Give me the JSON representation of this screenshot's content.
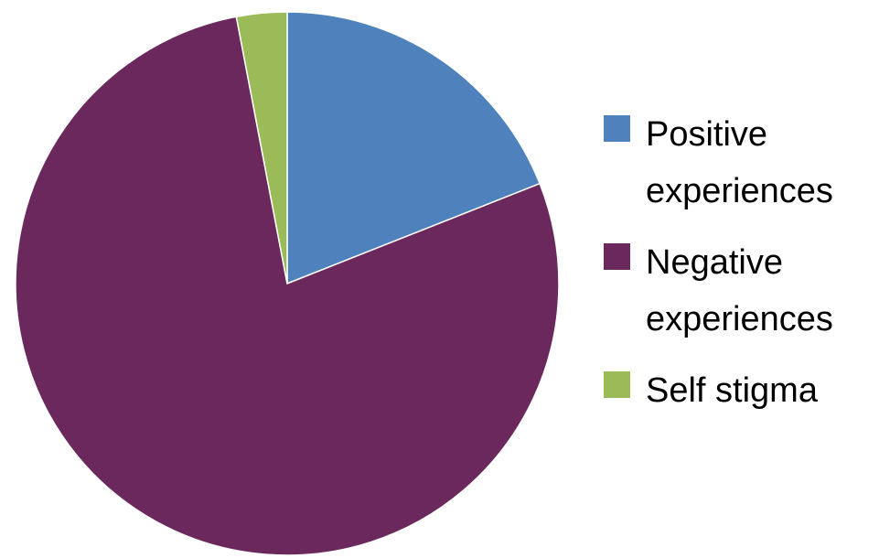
{
  "chart_data": {
    "type": "pie",
    "title": "",
    "start_angle_deg": 0,
    "direction": "clockwise",
    "slices": [
      {
        "label": "Positive experiences",
        "legend_lines": [
          "Positive",
          "experiences"
        ],
        "value": 19,
        "color": "#4f81bd"
      },
      {
        "label": "Negative experiences",
        "legend_lines": [
          "Negative",
          "experiences"
        ],
        "value": 78,
        "color": "#6b285c"
      },
      {
        "label": "Self stigma",
        "legend_lines": [
          "Self stigma"
        ],
        "value": 3,
        "color": "#9bbb59"
      }
    ],
    "legend_position": "right"
  }
}
